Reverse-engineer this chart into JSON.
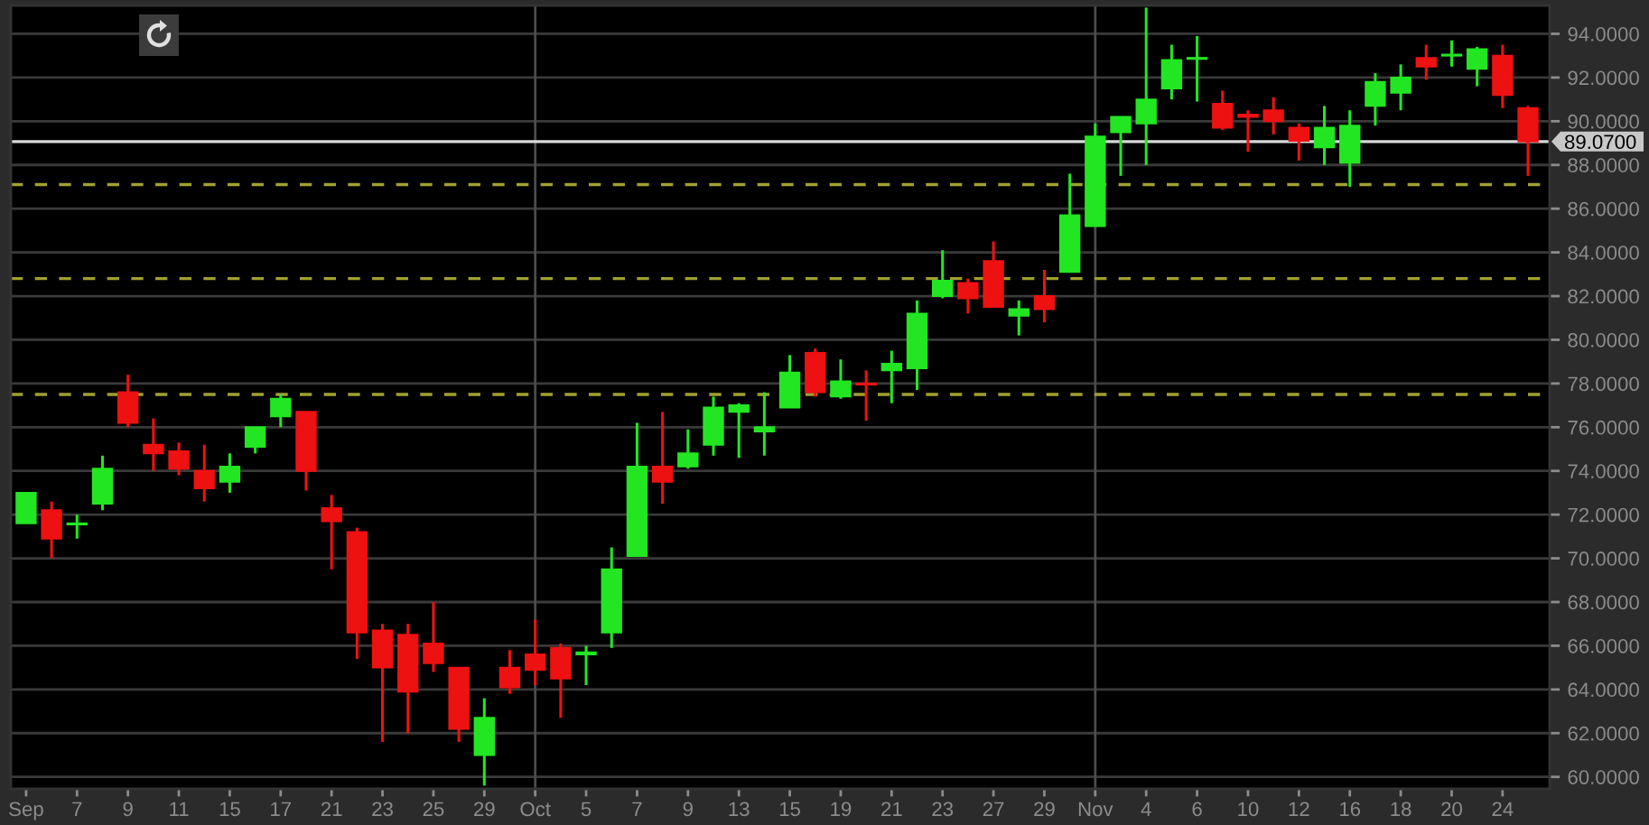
{
  "chart_data": {
    "type": "candlestick",
    "categories": [
      "Sep",
      null,
      "7",
      null,
      "9",
      null,
      "11",
      null,
      "15",
      null,
      "17",
      null,
      "21",
      null,
      "23",
      null,
      "25",
      null,
      "29",
      null,
      "Oct",
      null,
      "5",
      null,
      "7",
      null,
      "9",
      null,
      "13",
      null,
      "15",
      null,
      "19",
      null,
      "21",
      null,
      "23",
      null,
      "27",
      null,
      "29",
      null,
      "Nov",
      null,
      "4",
      null,
      "6",
      null,
      "10",
      null,
      "12",
      null,
      "16",
      null,
      "18",
      null,
      "20",
      null,
      "24",
      null
    ],
    "ohlc": [
      [
        71.6,
        73.0,
        71.6,
        73.0
      ],
      [
        72.2,
        72.6,
        70.0,
        70.9
      ],
      [
        71.55,
        72.0,
        70.9,
        71.6
      ],
      [
        72.5,
        74.7,
        72.2,
        74.1
      ],
      [
        77.6,
        78.4,
        76.0,
        76.2
      ],
      [
        75.2,
        76.4,
        74.0,
        74.8
      ],
      [
        74.9,
        75.3,
        73.8,
        74.1
      ],
      [
        74.0,
        75.2,
        72.6,
        73.2
      ],
      [
        73.5,
        74.8,
        73.0,
        74.2
      ],
      [
        75.1,
        76.0,
        74.8,
        76.0
      ],
      [
        76.5,
        77.5,
        76.0,
        77.3
      ],
      [
        76.7,
        76.7,
        73.1,
        74.0
      ],
      [
        72.3,
        72.9,
        69.5,
        71.7
      ],
      [
        71.2,
        71.4,
        65.4,
        66.6
      ],
      [
        66.7,
        67.0,
        61.6,
        65.0
      ],
      [
        66.5,
        67.0,
        62.0,
        63.9
      ],
      [
        66.1,
        68.0,
        64.8,
        65.2
      ],
      [
        65.0,
        65.0,
        61.6,
        62.2
      ],
      [
        61.0,
        63.6,
        59.6,
        62.7
      ],
      [
        65.0,
        65.8,
        63.8,
        64.1
      ],
      [
        65.6,
        67.2,
        64.2,
        64.9
      ],
      [
        65.9,
        66.1,
        62.7,
        64.5
      ],
      [
        65.6,
        66.0,
        64.2,
        65.7
      ],
      [
        66.6,
        70.5,
        65.9,
        69.5
      ],
      [
        70.1,
        76.2,
        70.1,
        74.2
      ],
      [
        74.2,
        76.7,
        72.5,
        73.5
      ],
      [
        74.2,
        75.9,
        74.1,
        74.8
      ],
      [
        75.2,
        77.4,
        74.7,
        76.9
      ],
      [
        76.7,
        77.1,
        74.6,
        77.0
      ],
      [
        75.8,
        77.6,
        74.7,
        76.0
      ],
      [
        76.9,
        79.3,
        76.9,
        78.5
      ],
      [
        79.4,
        79.6,
        77.4,
        77.6
      ],
      [
        77.4,
        79.1,
        77.3,
        78.1
      ],
      [
        78.0,
        78.6,
        76.3,
        77.95
      ],
      [
        78.6,
        79.5,
        77.1,
        78.9
      ],
      [
        78.7,
        81.8,
        77.7,
        81.2
      ],
      [
        82.0,
        84.1,
        81.9,
        82.7
      ],
      [
        82.6,
        82.8,
        81.2,
        81.9
      ],
      [
        83.6,
        84.5,
        81.5,
        81.5
      ],
      [
        81.1,
        81.8,
        80.2,
        81.4
      ],
      [
        82.0,
        83.2,
        80.8,
        81.4
      ],
      [
        83.1,
        87.6,
        83.1,
        85.7
      ],
      [
        85.2,
        89.9,
        85.2,
        89.3
      ],
      [
        89.5,
        90.2,
        87.5,
        90.2
      ],
      [
        89.9,
        95.2,
        88.0,
        91.0
      ],
      [
        91.5,
        93.5,
        91.0,
        92.8
      ],
      [
        92.85,
        93.9,
        90.9,
        92.9
      ],
      [
        90.8,
        91.4,
        89.6,
        89.7
      ],
      [
        90.3,
        90.5,
        88.6,
        90.2
      ],
      [
        90.5,
        91.1,
        89.4,
        90.0
      ],
      [
        89.7,
        89.9,
        88.2,
        89.1
      ],
      [
        88.8,
        90.7,
        88.0,
        89.7
      ],
      [
        88.1,
        90.5,
        87.0,
        89.8
      ],
      [
        90.7,
        92.2,
        89.8,
        91.8
      ],
      [
        91.3,
        92.6,
        90.5,
        92.0
      ],
      [
        92.9,
        93.5,
        91.9,
        92.5
      ],
      [
        93.0,
        93.7,
        92.5,
        93.05
      ],
      [
        92.4,
        93.4,
        91.6,
        93.3
      ],
      [
        93.0,
        93.5,
        90.6,
        91.2
      ],
      [
        90.6,
        90.7,
        87.5,
        89.07
      ]
    ],
    "colors": [
      "#22e622",
      "#ee1111",
      "#22e622",
      "#22e622",
      "#ee1111",
      "#ee1111",
      "#ee1111",
      "#ee1111",
      "#22e622",
      "#22e622",
      "#22e622",
      "#ee1111",
      "#ee1111",
      "#ee1111",
      "#ee1111",
      "#ee1111",
      "#ee1111",
      "#ee1111",
      "#22e622",
      "#ee1111",
      "#ee1111",
      "#ee1111",
      "#22e622",
      "#22e622",
      "#22e622",
      "#ee1111",
      "#22e622",
      "#22e622",
      "#22e622",
      "#22e622",
      "#22e622",
      "#ee1111",
      "#22e622",
      "#ee1111",
      "#22e622",
      "#22e622",
      "#22e622",
      "#ee1111",
      "#ee1111",
      "#22e622",
      "#ee1111",
      "#22e622",
      "#22e622",
      "#22e622",
      "#22e622",
      "#22e622",
      "#22e622",
      "#ee1111",
      "#ee1111",
      "#ee1111",
      "#ee1111",
      "#22e622",
      "#22e622",
      "#22e622",
      "#22e622",
      "#ee1111",
      "#22e622",
      "#22e622",
      "#ee1111",
      "#ee1111"
    ],
    "ylim": [
      59.45,
      95.3
    ],
    "yticks": [
      {
        "value": 60,
        "label": "60.0000"
      },
      {
        "value": 62,
        "label": "62.0000"
      },
      {
        "value": 64,
        "label": "64.0000"
      },
      {
        "value": 66,
        "label": "66.0000"
      },
      {
        "value": 68,
        "label": "68.0000"
      },
      {
        "value": 70,
        "label": "70.0000"
      },
      {
        "value": 72,
        "label": "72.0000"
      },
      {
        "value": 74,
        "label": "74.0000"
      },
      {
        "value": 76,
        "label": "76.0000"
      },
      {
        "value": 78,
        "label": "78.0000"
      },
      {
        "value": 80,
        "label": "80.0000"
      },
      {
        "value": 82,
        "label": "82.0000"
      },
      {
        "value": 84,
        "label": "84.0000"
      },
      {
        "value": 86,
        "label": "86.0000"
      },
      {
        "value": 88,
        "label": "88.0000"
      },
      {
        "value": 90,
        "label": "90.0000"
      },
      {
        "value": 92,
        "label": "92.0000"
      },
      {
        "value": 94,
        "label": "94.0000"
      }
    ],
    "grid": "y",
    "ref_lines": [
      {
        "axis": "y",
        "value": 89.07,
        "label": "89.0700",
        "color": "#d8d8d8",
        "line_style": "solid"
      },
      {
        "axis": "y",
        "value": 87.1,
        "color": "#a0a030",
        "line_style": "dashed"
      },
      {
        "axis": "y",
        "value": 82.8,
        "color": "#a0a030",
        "line_style": "dashed"
      },
      {
        "axis": "y",
        "value": 77.5,
        "color": "#a0a030",
        "line_style": "dashed"
      },
      {
        "axis": "x",
        "value": "Oct",
        "color": "#4c4c4c",
        "line_style": "solid"
      },
      {
        "axis": "x",
        "value": "Nov",
        "color": "#4c4c4c",
        "line_style": "solid"
      }
    ]
  }
}
